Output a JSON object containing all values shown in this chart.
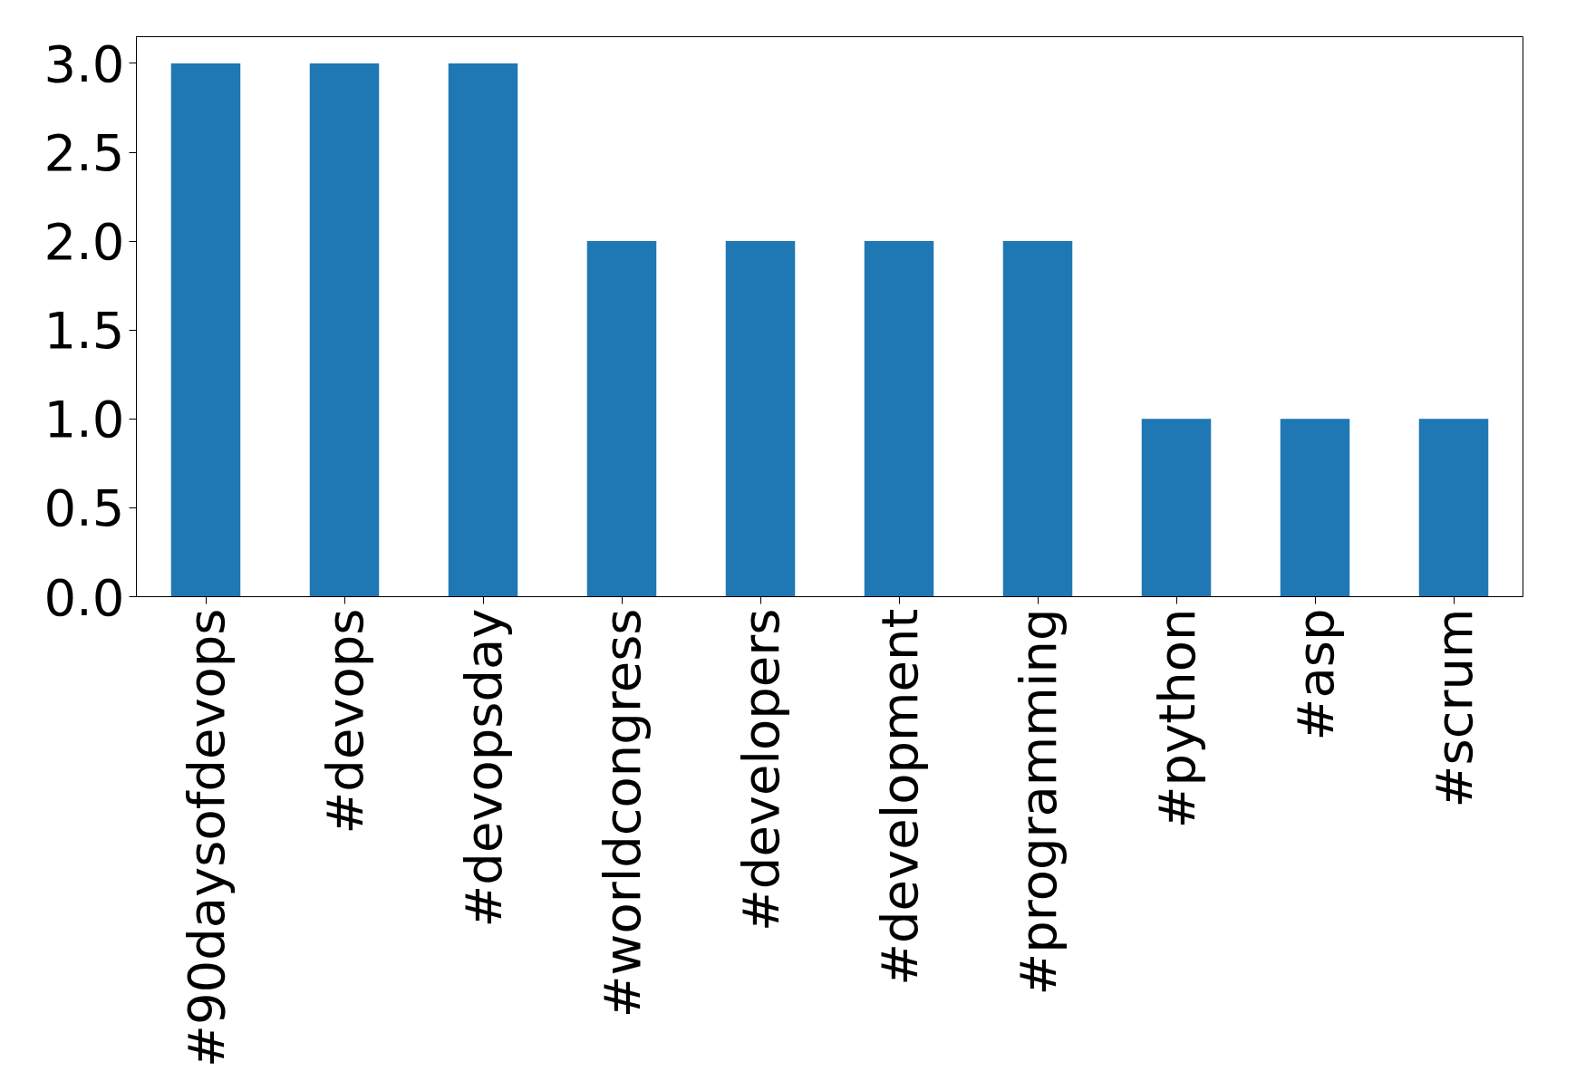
{
  "chart_data": {
    "type": "bar",
    "categories": [
      "#90daysofdevops",
      "#devops",
      "#devopsday",
      "#worldcongress",
      "#developers",
      "#development",
      "#programming",
      "#python",
      "#asp",
      "#scrum"
    ],
    "values": [
      3,
      3,
      3,
      2,
      2,
      2,
      2,
      1,
      1,
      1
    ],
    "color": "#1f77b4",
    "ylim": [
      0,
      3.15
    ],
    "yticks": [
      {
        "value": 0,
        "label": "0.0"
      },
      {
        "value": 0.5,
        "label": "0.5"
      },
      {
        "value": 1,
        "label": "1.0"
      },
      {
        "value": 1.5,
        "label": "1.5"
      },
      {
        "value": 2,
        "label": "2.0"
      },
      {
        "value": 2.5,
        "label": "2.5"
      },
      {
        "value": 3,
        "label": "3.0"
      }
    ],
    "grid": false
  }
}
